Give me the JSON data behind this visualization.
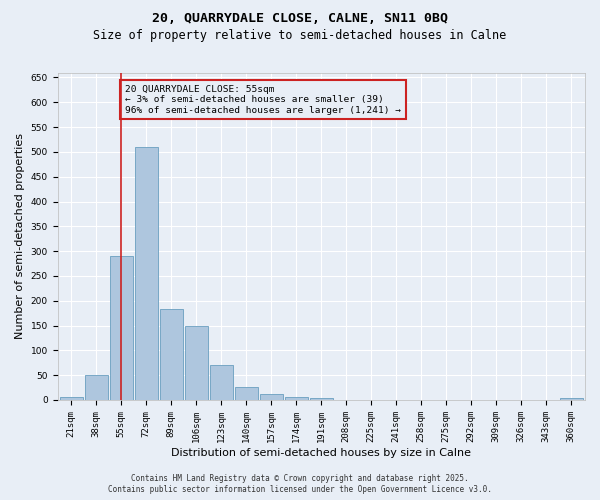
{
  "title_line1": "20, QUARRYDALE CLOSE, CALNE, SN11 0BQ",
  "title_line2": "Size of property relative to semi-detached houses in Calne",
  "xlabel": "Distribution of semi-detached houses by size in Calne",
  "ylabel": "Number of semi-detached properties",
  "categories": [
    "21sqm",
    "38sqm",
    "55sqm",
    "72sqm",
    "89sqm",
    "106sqm",
    "123sqm",
    "140sqm",
    "157sqm",
    "174sqm",
    "191sqm",
    "208sqm",
    "225sqm",
    "241sqm",
    "258sqm",
    "275sqm",
    "292sqm",
    "309sqm",
    "326sqm",
    "343sqm",
    "360sqm"
  ],
  "values": [
    6,
    50,
    290,
    510,
    183,
    150,
    70,
    27,
    12,
    5,
    3,
    0,
    0,
    0,
    0,
    0,
    0,
    0,
    0,
    0,
    4
  ],
  "bar_color": "#aec6de",
  "bar_edge_color": "#6a9fc0",
  "highlight_bar_index": 2,
  "highlight_color": "#cc2222",
  "annotation_title": "20 QUARRYDALE CLOSE: 55sqm",
  "annotation_line2": "← 3% of semi-detached houses are smaller (39)",
  "annotation_line3": "96% of semi-detached houses are larger (1,241) →",
  "annotation_box_color": "#cc2222",
  "ylim": [
    0,
    660
  ],
  "yticks": [
    0,
    50,
    100,
    150,
    200,
    250,
    300,
    350,
    400,
    450,
    500,
    550,
    600,
    650
  ],
  "footer_line1": "Contains HM Land Registry data © Crown copyright and database right 2025.",
  "footer_line2": "Contains public sector information licensed under the Open Government Licence v3.0.",
  "background_color": "#e8eef6",
  "grid_color": "#ffffff",
  "title_fontsize": 9.5,
  "subtitle_fontsize": 8.5,
  "tick_fontsize": 6.5,
  "ylabel_fontsize": 8,
  "xlabel_fontsize": 8,
  "footer_fontsize": 5.5
}
